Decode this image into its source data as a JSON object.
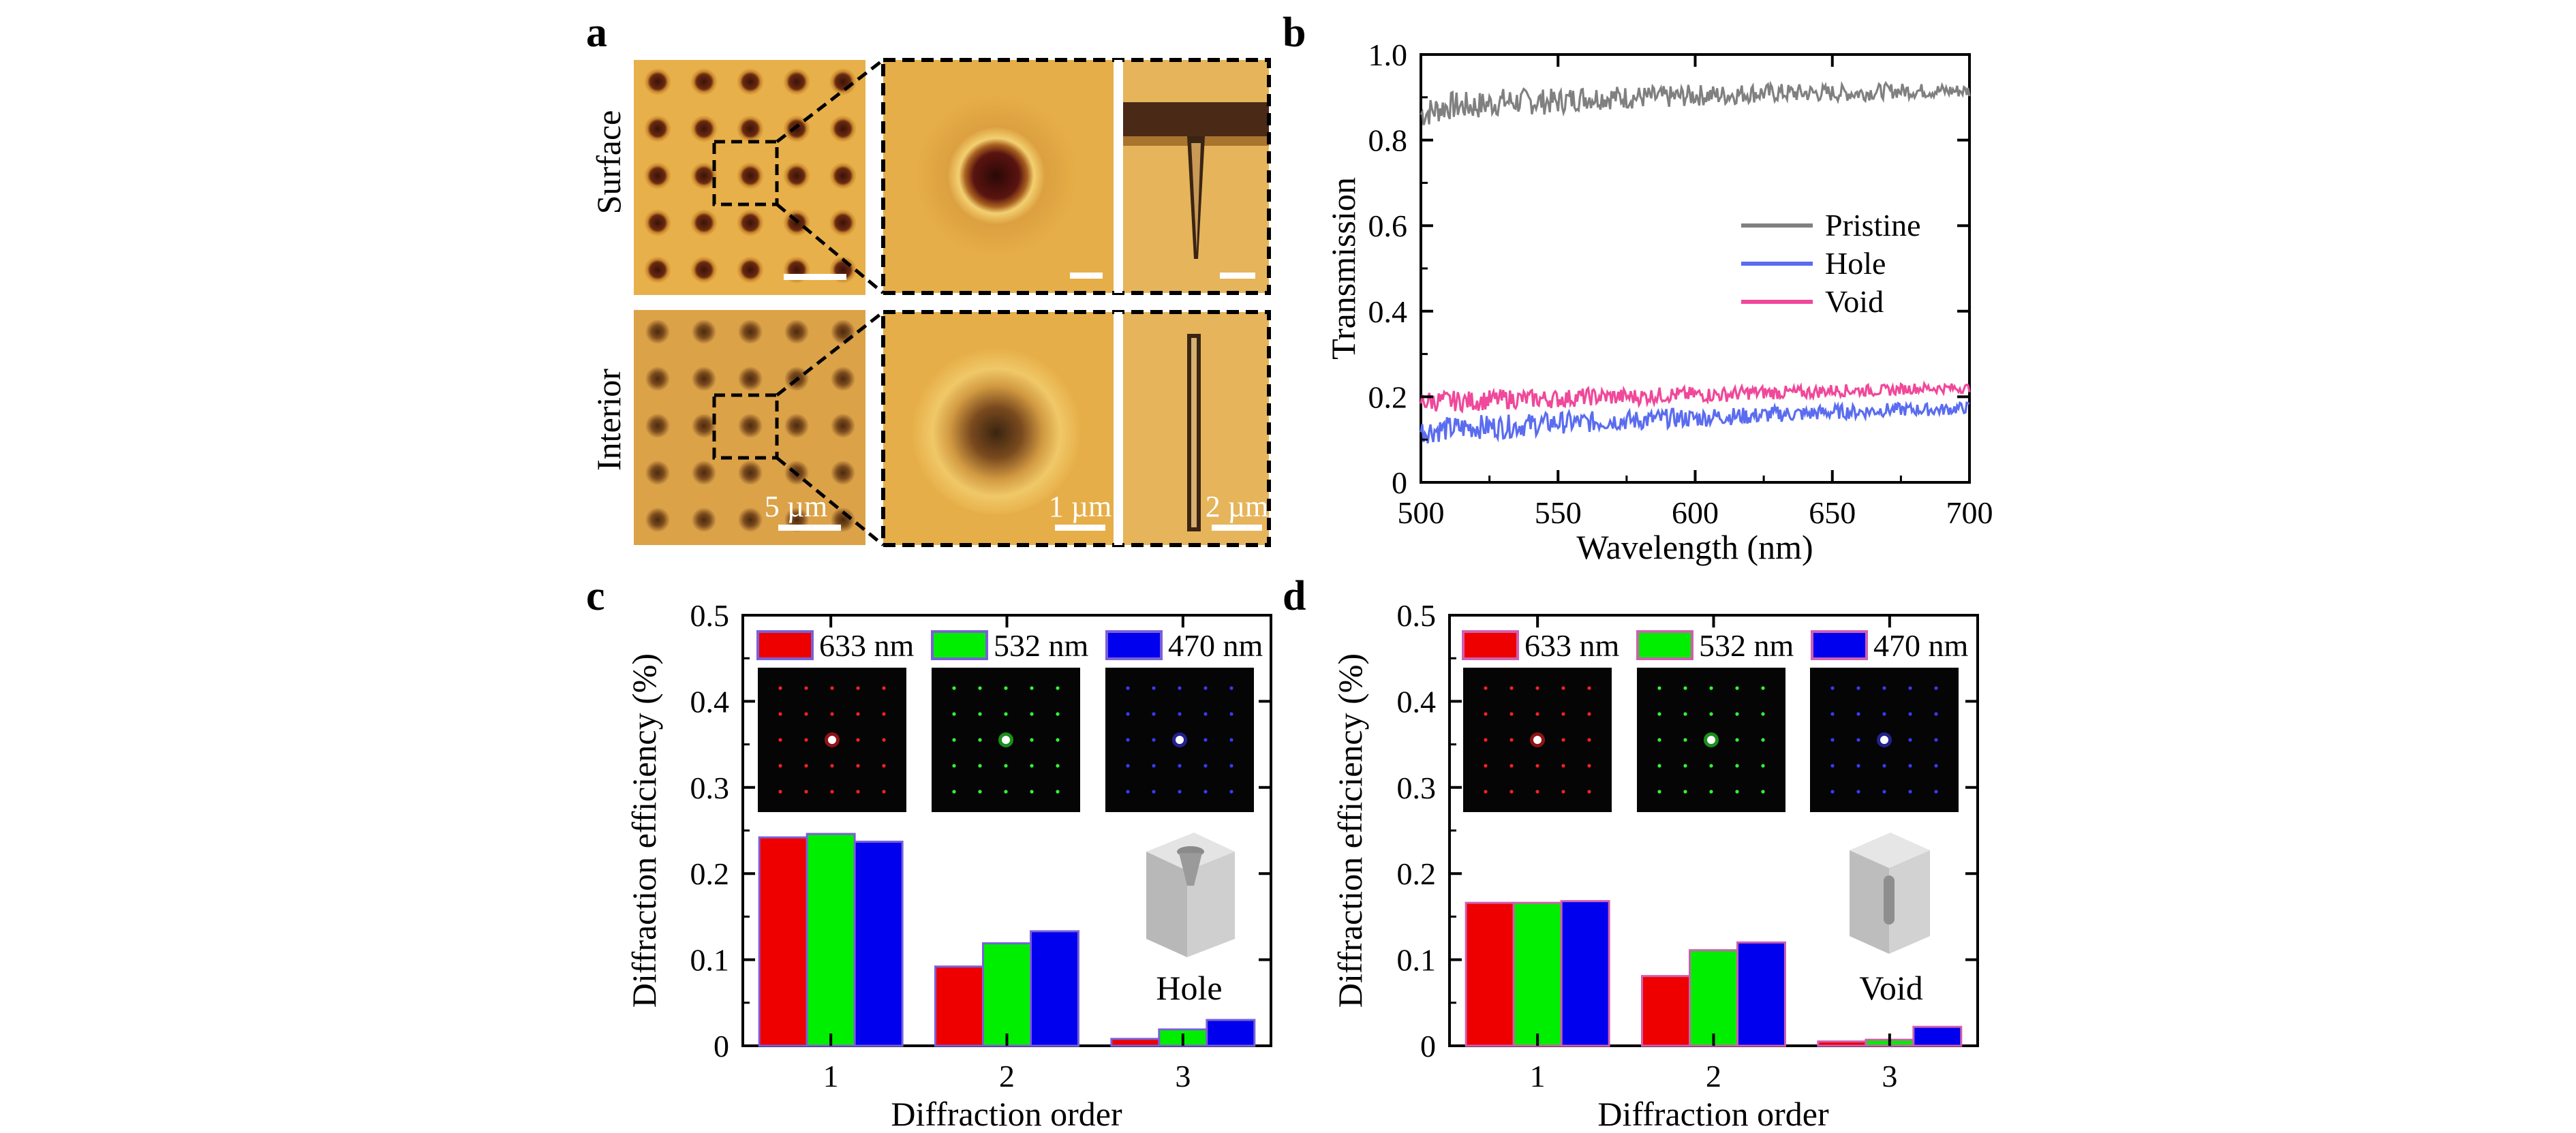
{
  "panels": {
    "a": {
      "letter": "a",
      "row_labels": [
        "Surface",
        "Interior"
      ],
      "scale_bars": [
        "5 µm",
        "1 µm",
        "2 µm"
      ],
      "colors": {
        "bg_light": "#e8b04a",
        "bg_dark": "#d59a3a",
        "spot": "#5a2a10"
      }
    },
    "b": {
      "letter": "b"
    },
    "c": {
      "letter": "c",
      "inset_label": "Hole"
    },
    "d": {
      "letter": "d",
      "inset_label": "Void"
    }
  },
  "chart_data": [
    {
      "panel": "b",
      "type": "line",
      "xlabel": "Wavelength (nm)",
      "ylabel": "Transmission",
      "xlim": [
        500,
        700
      ],
      "ylim": [
        0,
        1.0
      ],
      "xticks": [
        500,
        550,
        600,
        650,
        700
      ],
      "yticks": [
        0,
        0.2,
        0.4,
        0.6,
        0.8,
        1.0
      ],
      "ytick_labels": [
        "0",
        "0.2",
        "0.4",
        "0.6",
        "0.8",
        "1.0"
      ],
      "legend_position": "center-right",
      "x": [
        500,
        510,
        520,
        530,
        540,
        550,
        560,
        570,
        580,
        590,
        600,
        610,
        620,
        630,
        640,
        650,
        660,
        670,
        680,
        690,
        700
      ],
      "series": [
        {
          "name": "Pristine",
          "color": "#808080",
          "noise": 0.035,
          "values": [
            0.86,
            0.88,
            0.88,
            0.89,
            0.89,
            0.89,
            0.9,
            0.9,
            0.9,
            0.9,
            0.905,
            0.905,
            0.91,
            0.91,
            0.91,
            0.91,
            0.91,
            0.915,
            0.915,
            0.915,
            0.915
          ]
        },
        {
          "name": "Hole",
          "color": "#5a6cf0",
          "noise": 0.03,
          "values": [
            0.12,
            0.125,
            0.13,
            0.13,
            0.135,
            0.14,
            0.14,
            0.145,
            0.145,
            0.15,
            0.15,
            0.155,
            0.155,
            0.16,
            0.16,
            0.165,
            0.165,
            0.17,
            0.17,
            0.17,
            0.175
          ]
        },
        {
          "name": "Void",
          "color": "#f0489a",
          "noise": 0.025,
          "values": [
            0.19,
            0.19,
            0.19,
            0.195,
            0.195,
            0.195,
            0.2,
            0.2,
            0.2,
            0.205,
            0.205,
            0.205,
            0.21,
            0.21,
            0.21,
            0.215,
            0.215,
            0.215,
            0.22,
            0.22,
            0.22
          ]
        }
      ]
    },
    {
      "panel": "c",
      "type": "bar",
      "xlabel": "Diffraction order",
      "ylabel": "Diffraction efficiency (%)",
      "categories": [
        "1",
        "2",
        "3"
      ],
      "ylim": [
        0,
        0.5
      ],
      "yticks": [
        0,
        0.1,
        0.2,
        0.3,
        0.4,
        0.5
      ],
      "legend_position": "top",
      "legend_border": "#7a60d8",
      "series": [
        {
          "name": "633 nm",
          "color": "#ee0000",
          "values": [
            0.242,
            0.092,
            0.008
          ]
        },
        {
          "name": "532 nm",
          "color": "#00ee00",
          "values": [
            0.246,
            0.119,
            0.019
          ]
        },
        {
          "name": "470 nm",
          "color": "#0000ee",
          "values": [
            0.237,
            0.133,
            0.03
          ]
        }
      ]
    },
    {
      "panel": "d",
      "type": "bar",
      "xlabel": "Diffraction order",
      "ylabel": "Diffraction efficiency (%)",
      "categories": [
        "1",
        "2",
        "3"
      ],
      "ylim": [
        0,
        0.5
      ],
      "yticks": [
        0,
        0.1,
        0.2,
        0.3,
        0.4,
        0.5
      ],
      "legend_position": "top",
      "legend_border": "#d05fb0",
      "series": [
        {
          "name": "633 nm",
          "color": "#ee0000",
          "values": [
            0.166,
            0.081,
            0.005
          ]
        },
        {
          "name": "532 nm",
          "color": "#00ee00",
          "values": [
            0.166,
            0.111,
            0.007
          ]
        },
        {
          "name": "470 nm",
          "color": "#0000ee",
          "values": [
            0.168,
            0.12,
            0.022
          ]
        }
      ]
    }
  ]
}
